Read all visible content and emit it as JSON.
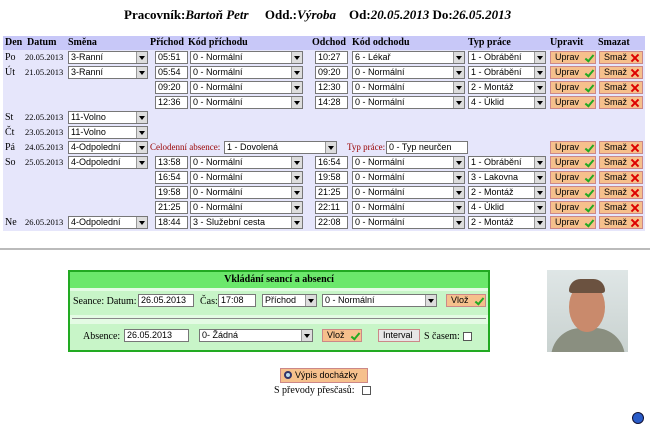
{
  "header": {
    "worker_label": "Pracovník:",
    "worker": "Bartoň Petr",
    "dept_label": "Odd.:",
    "dept": "Výroba",
    "from_label": "Od:",
    "from": "20.05.2013",
    "to_label": "Do:",
    "to": "26.05.2013"
  },
  "table": {
    "columns": [
      "Den",
      "Datum",
      "Směna",
      "Příchod",
      "Kód příchodu",
      "Odchod",
      "Kód odchodu",
      "Typ práce",
      "Upravit",
      "Smazat"
    ],
    "edit_button": "Uprav",
    "delete_button": "Smaž",
    "days": [
      {
        "den": "Po",
        "datum": "20.05.2013",
        "smena": "3-Ranní",
        "entries": [
          {
            "in": "05:51",
            "in_code": "0 - Normální",
            "out": "10:27",
            "out_code": "6 - Lékař",
            "work": "1 - Obrábění"
          }
        ]
      },
      {
        "den": "Út",
        "datum": "21.05.2013",
        "smena": "3-Ranní",
        "entries": [
          {
            "in": "05:54",
            "in_code": "0 - Normální",
            "out": "09:20",
            "out_code": "0 - Normální",
            "work": "1 - Obrábění"
          },
          {
            "in": "09:20",
            "in_code": "0 - Normální",
            "out": "12:30",
            "out_code": "0 - Normální",
            "work": "2 - Montáž"
          },
          {
            "in": "12:36",
            "in_code": "0 - Normální",
            "out": "14:28",
            "out_code": "0 - Normální",
            "work": "4 - Úklid"
          }
        ]
      },
      {
        "den": "St",
        "datum": "22.05.2013",
        "smena": "11-Volno"
      },
      {
        "den": "Čt",
        "datum": "23.05.2013",
        "smena": "11-Volno"
      },
      {
        "den": "Pá",
        "datum": "24.05.2013",
        "smena": "4-Odpolední",
        "absence_label": "Celodenní absence:",
        "absence": "1 - Dovolená",
        "work_label": "Typ práce:",
        "work": "0 - Typ neurčen"
      },
      {
        "den": "So",
        "datum": "25.05.2013",
        "smena": "4-Odpolední",
        "entries": [
          {
            "in": "13:58",
            "in_code": "0 - Normální",
            "out": "16:54",
            "out_code": "0 - Normální",
            "work": "1 - Obrábění"
          },
          {
            "in": "16:54",
            "in_code": "0 - Normální",
            "out": "19:58",
            "out_code": "0 - Normální",
            "work": "3 - Lakovna"
          },
          {
            "in": "19:58",
            "in_code": "0 - Normální",
            "out": "21:25",
            "out_code": "0 - Normální",
            "work": "2 - Montáž"
          },
          {
            "in": "21:25",
            "in_code": "0 - Normální",
            "out": "22:11",
            "out_code": "0 - Normální",
            "work": "4 - Úklid"
          }
        ]
      },
      {
        "den": "Ne",
        "datum": "26.05.2013",
        "smena": "4-Odpolední",
        "entries": [
          {
            "in": "18:44",
            "in_code": "3 - Služební cesta",
            "out": "22:08",
            "out_code": "0 - Normální",
            "work": "2 - Montáž"
          }
        ]
      }
    ]
  },
  "form": {
    "title": "Vkládání seancí a absencí",
    "seance_label": "Seance: Datum:",
    "seance_date": "26.05.2013",
    "time_label": "Čas:",
    "time": "17:08",
    "direction": "Příchod",
    "seance_code": "0 - Normální",
    "insert_button": "Vlož",
    "absence_label": "Absence:",
    "absence_date": "26.05.2013",
    "absence_code": "0- Žádná",
    "interval_button": "Interval",
    "with_time_label": "S časem:"
  },
  "report_button": "Výpis docházky",
  "overtime_label": "S převody přesčasů:"
}
